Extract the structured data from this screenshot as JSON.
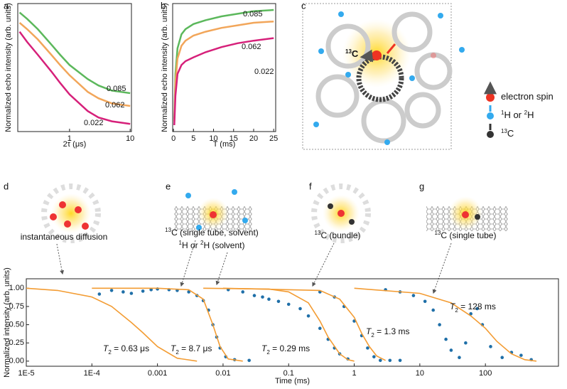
{
  "chart_data": [
    {
      "type": "line",
      "xscale": "log",
      "x": [
        0.15,
        0.2,
        0.3,
        0.5,
        0.7,
        1,
        2,
        3,
        5,
        7,
        10
      ],
      "xlim": [
        0.14,
        10.5
      ],
      "ylim": [
        0,
        1
      ],
      "xticks": [
        1,
        10
      ],
      "xlabel": "2τ (μs)",
      "ylabel": "Normalized echo intensity (arb. units)",
      "series": [
        {
          "name": "0.085",
          "color": "#5cb85c",
          "values": [
            0.93,
            0.88,
            0.8,
            0.68,
            0.6,
            0.52,
            0.41,
            0.36,
            0.32,
            0.31,
            0.3
          ]
        },
        {
          "name": "0.062",
          "color": "#f2a65a",
          "values": [
            0.85,
            0.8,
            0.72,
            0.6,
            0.52,
            0.44,
            0.31,
            0.26,
            0.22,
            0.21,
            0.2
          ]
        },
        {
          "name": "0.022",
          "color": "#d6207a",
          "values": [
            0.78,
            0.7,
            0.6,
            0.47,
            0.38,
            0.29,
            0.16,
            0.11,
            0.08,
            0.07,
            0.06
          ]
        }
      ]
    },
    {
      "type": "line",
      "x": [
        0.2,
        0.5,
        1,
        2,
        3,
        5,
        8,
        12,
        16,
        20,
        25
      ],
      "xlim": [
        -0.2,
        25.5
      ],
      "ylim": [
        0,
        1
      ],
      "xticks": [
        0,
        5,
        10,
        15,
        20,
        25
      ],
      "xlabel": "T (ms)",
      "ylabel": "Normalized echo intensity (arb. units)",
      "series": [
        {
          "name": "0.085",
          "color": "#5cb85c",
          "values": [
            0.1,
            0.45,
            0.65,
            0.76,
            0.8,
            0.84,
            0.87,
            0.9,
            0.92,
            0.94,
            0.95
          ]
        },
        {
          "name": "0.062",
          "color": "#f2a65a",
          "values": [
            0.08,
            0.38,
            0.57,
            0.67,
            0.71,
            0.75,
            0.78,
            0.81,
            0.83,
            0.85,
            0.86
          ]
        },
        {
          "name": "0.022",
          "color": "#d6207a",
          "values": [
            0.05,
            0.28,
            0.45,
            0.52,
            0.55,
            0.58,
            0.62,
            0.66,
            0.69,
            0.71,
            0.73
          ]
        }
      ]
    },
    {
      "type": "line",
      "xscale": "log",
      "xlim": [
        1e-05,
        1300
      ],
      "ylim": [
        -0.07,
        1.13
      ],
      "xticks": [
        {
          "value": 1e-05,
          "label": "1E-5"
        },
        {
          "value": 0.0001,
          "label": "1E-4"
        },
        0.001,
        0.01,
        0.1,
        1,
        10,
        100
      ],
      "yticks": [
        {
          "value": 0,
          "label": "0.00"
        },
        {
          "value": 0.25,
          "label": "0.25"
        },
        {
          "value": 0.5,
          "label": "0.50"
        },
        {
          "value": 0.75,
          "label": "0.75"
        },
        {
          "value": 1,
          "label": "1.00"
        }
      ],
      "xlabel": "Time (ms)",
      "ylabel": "Normalized intensity (arb. units)",
      "series": [
        {
          "mode": "line",
          "color": "#f39c33",
          "x": [
            1e-05,
            3e-05,
            0.0001,
            0.0002,
            0.0004,
            0.0006,
            0.001,
            0.002,
            0.004
          ],
          "values": [
            1,
            0.97,
            0.88,
            0.75,
            0.53,
            0.39,
            0.2,
            0.04,
            0
          ]
        },
        {
          "mode": "markers",
          "color": "#1f6fa8",
          "x": [
            0.00013,
            0.0002,
            0.0003,
            0.0004,
            0.0006,
            0.0008,
            0.001,
            0.0015,
            0.002,
            0.003,
            0.004,
            0.005,
            0.006,
            0.007,
            0.008,
            0.009,
            0.011,
            0.015,
            0.025
          ],
          "values": [
            0.92,
            0.97,
            0.95,
            0.93,
            0.96,
            0.98,
            0.99,
            0.98,
            0.97,
            0.95,
            0.9,
            0.83,
            0.7,
            0.5,
            0.33,
            0.18,
            0.06,
            0.02,
            0.01
          ]
        },
        {
          "mode": "line",
          "color": "#f39c33",
          "x": [
            0.0001,
            0.001,
            0.003,
            0.005,
            0.007,
            0.009,
            0.012,
            0.02
          ],
          "values": [
            1,
            1,
            0.98,
            0.85,
            0.5,
            0.2,
            0.03,
            0
          ]
        },
        {
          "mode": "markers",
          "color": "#1f6fa8",
          "x": [
            0.012,
            0.02,
            0.03,
            0.04,
            0.05,
            0.07,
            0.1,
            0.15,
            0.2,
            0.3,
            0.4,
            0.5,
            0.6,
            0.8
          ],
          "values": [
            0.98,
            0.95,
            0.9,
            0.88,
            0.85,
            0.82,
            0.78,
            0.72,
            0.62,
            0.45,
            0.3,
            0.18,
            0.1,
            0.03
          ]
        },
        {
          "mode": "line",
          "color": "#f39c33",
          "x": [
            0.005,
            0.05,
            0.1,
            0.2,
            0.3,
            0.4,
            0.6,
            0.8,
            1
          ],
          "values": [
            1,
            0.99,
            0.95,
            0.8,
            0.55,
            0.33,
            0.1,
            0.02,
            0
          ]
        },
        {
          "mode": "markers",
          "color": "#1f6fa8",
          "x": [
            0.3,
            0.5,
            0.7,
            1,
            1.3,
            1.6,
            2,
            2.5,
            3.5,
            5
          ],
          "values": [
            0.95,
            0.88,
            0.75,
            0.55,
            0.35,
            0.18,
            0.06,
            0.01,
            0.01,
            0.01
          ]
        },
        {
          "mode": "line",
          "color": "#f39c33",
          "x": [
            0.01,
            0.3,
            0.6,
            1,
            1.3,
            1.7,
            2.2,
            3
          ],
          "values": [
            1,
            0.97,
            0.85,
            0.6,
            0.38,
            0.2,
            0.07,
            0.01
          ]
        },
        {
          "mode": "markers",
          "color": "#1f6fa8",
          "x": [
            3,
            5,
            8,
            12,
            16,
            20,
            25,
            30,
            40,
            50,
            60,
            75,
            90,
            120,
            180,
            250,
            350,
            500
          ],
          "values": [
            0.98,
            0.95,
            0.9,
            0.82,
            0.7,
            0.5,
            0.3,
            0.15,
            0.05,
            0.25,
            0.65,
            0.72,
            0.5,
            0.2,
            0.05,
            0.12,
            0.08,
            0.02
          ]
        },
        {
          "mode": "line",
          "color": "#f39c33",
          "x": [
            1,
            10,
            30,
            60,
            100,
            150,
            250,
            400,
            600
          ],
          "values": [
            1,
            0.93,
            0.8,
            0.62,
            0.45,
            0.27,
            0.1,
            0.02,
            0
          ]
        }
      ],
      "annotations": [
        {
          "parts": [
            {
              "italic": "T"
            },
            {
              "sub": "2"
            },
            {
              "text": " = 0.63 μs"
            }
          ]
        },
        {
          "parts": [
            {
              "italic": "T"
            },
            {
              "sub": "2"
            },
            {
              "text": " = 8.7 μs"
            }
          ]
        },
        {
          "parts": [
            {
              "italic": "T"
            },
            {
              "sub": "2"
            },
            {
              "text": " = 0.29 ms"
            }
          ]
        },
        {
          "parts": [
            {
              "italic": "T"
            },
            {
              "sub": "2"
            },
            {
              "text": " = 1.3 ms"
            }
          ]
        },
        {
          "parts": [
            {
              "italic": "T"
            },
            {
              "sub": "2"
            },
            {
              "text": " = 128 ms"
            }
          ]
        }
      ]
    }
  ],
  "panel_labels": [
    "a",
    "b",
    "c",
    "d",
    "e",
    "f",
    "g"
  ],
  "diagram": {
    "c_label": {
      "parts": [
        {
          "sup": "13"
        },
        {
          "text": "C"
        }
      ]
    },
    "legend": [
      {
        "parts": [
          {
            "text": "electron spin"
          }
        ]
      },
      {
        "parts": [
          {
            "sup": "1"
          },
          {
            "text": "H or "
          },
          {
            "sup": "2"
          },
          {
            "text": "H"
          }
        ]
      },
      {
        "parts": [
          {
            "sup": "13"
          },
          {
            "text": "C"
          }
        ]
      }
    ],
    "captions": [
      {
        "parts": [
          {
            "text": "instantaneous diffusion"
          }
        ]
      },
      {
        "parts": [
          {
            "sup": "13"
          },
          {
            "text": "C (single tube, solvent)"
          }
        ]
      },
      {
        "parts": [
          {
            "sup": "1"
          },
          {
            "text": "H or "
          },
          {
            "sup": "2"
          },
          {
            "text": "H (solvent)"
          }
        ]
      },
      {
        "parts": [
          {
            "sup": "13"
          },
          {
            "text": "C (bundle)"
          }
        ]
      },
      {
        "parts": [
          {
            "sup": "13"
          },
          {
            "text": "C (single tube)"
          }
        ]
      }
    ]
  }
}
